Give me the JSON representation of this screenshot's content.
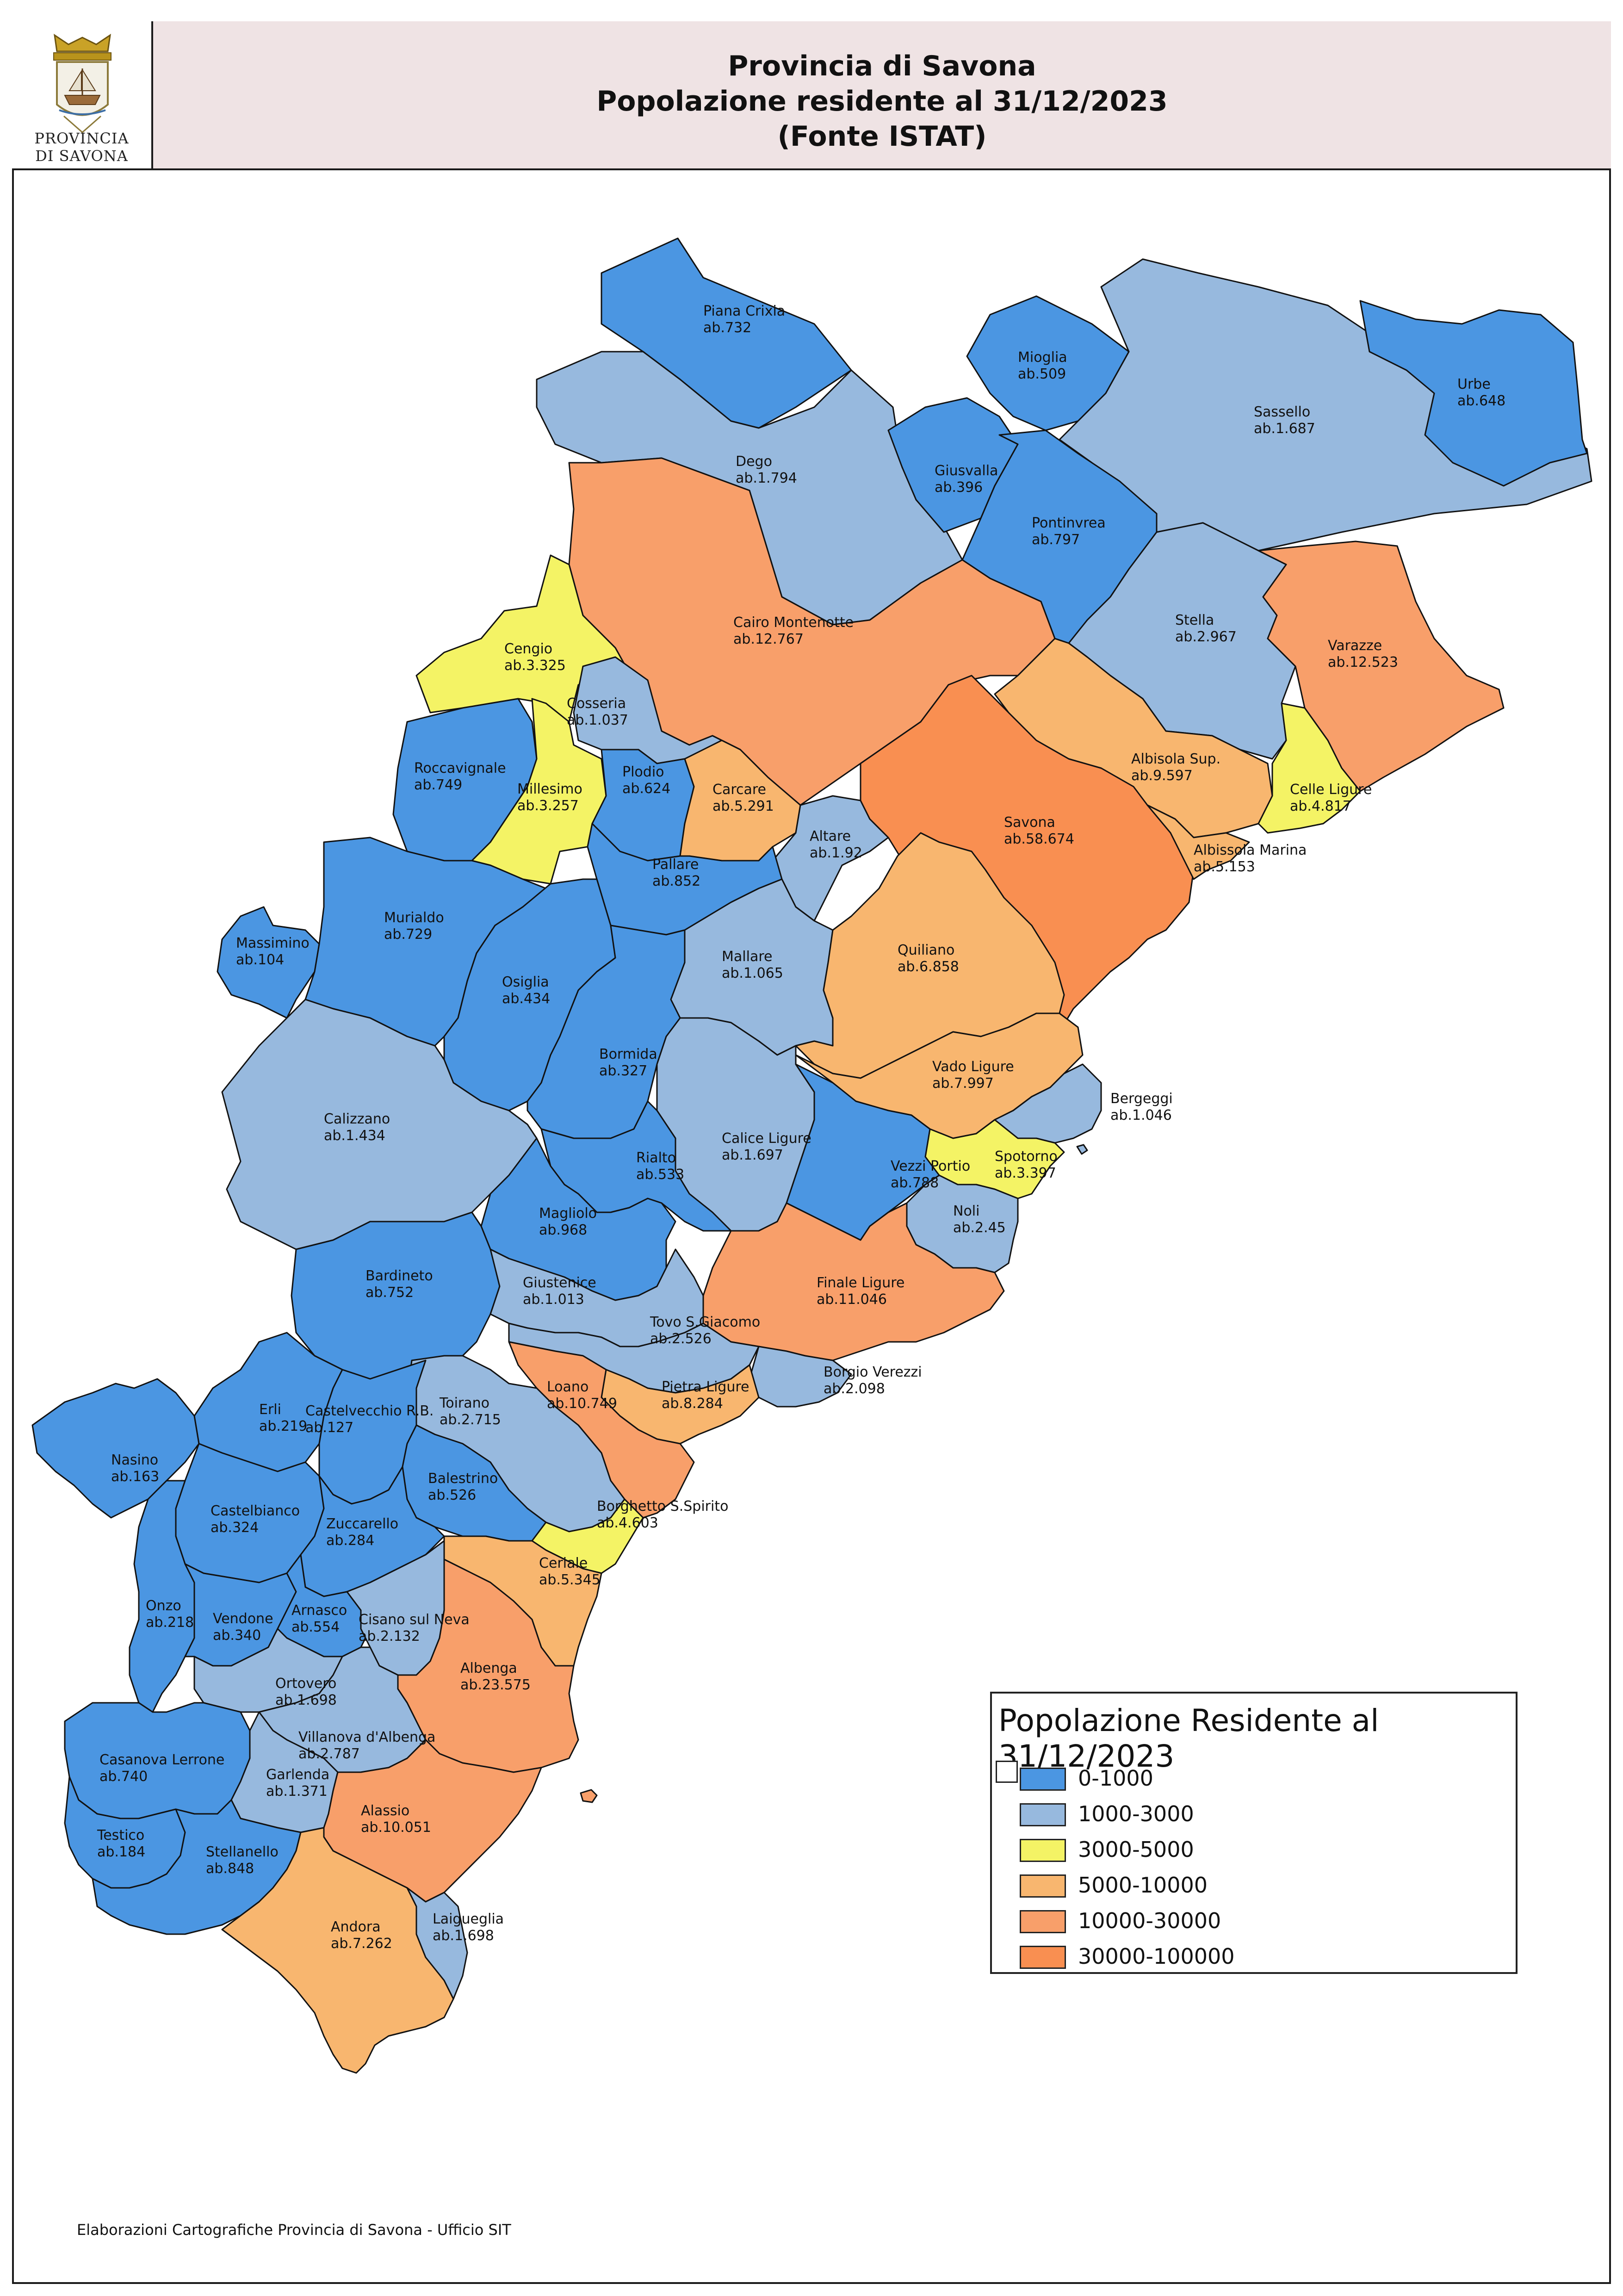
{
  "header": {
    "line1": "Provincia di Savona",
    "line2": "Popolazione residente al 31/12/2023",
    "line3": "(Fonte ISTAT)"
  },
  "logo": {
    "caption_line1": "PROVINCIA",
    "caption_line2": "DI SAVONA"
  },
  "legend": {
    "title": "Popolazione Residente al 31/12/2023",
    "classes": [
      {
        "label": "0-1000",
        "color": "#4b96e2"
      },
      {
        "label": "1000-3000",
        "color": "#97b9de"
      },
      {
        "label": "3000-5000",
        "color": "#f4f365"
      },
      {
        "label": "5000-10000",
        "color": "#f8b66f"
      },
      {
        "label": "10000-30000",
        "color": "#f89f6a"
      },
      {
        "label": "30000-100000",
        "color": "#f98f51"
      }
    ]
  },
  "footer": {
    "credit": "Elaborazioni Cartografiche Provincia di Savona - Ufficio SIT"
  },
  "municipalities": [
    {
      "name": "Piana Crixia",
      "pop": "ab.732"
    },
    {
      "name": "Mioglia",
      "pop": "ab.509"
    },
    {
      "name": "Urbe",
      "pop": "ab.648"
    },
    {
      "name": "Sassello",
      "pop": "ab.1.687"
    },
    {
      "name": "Dego",
      "pop": "ab.1.794"
    },
    {
      "name": "Giusvalla",
      "pop": "ab.396"
    },
    {
      "name": "Pontinvrea",
      "pop": "ab.797"
    },
    {
      "name": "Cairo Montenotte",
      "pop": "ab.12.767"
    },
    {
      "name": "Stella",
      "pop": "ab.2.967"
    },
    {
      "name": "Varazze",
      "pop": "ab.12.523"
    },
    {
      "name": "Cengio",
      "pop": "ab.3.325"
    },
    {
      "name": "Cosseria",
      "pop": "ab.1.037"
    },
    {
      "name": "Roccavignale",
      "pop": "ab.749"
    },
    {
      "name": "Millesimo",
      "pop": "ab.3.257"
    },
    {
      "name": "Plodio",
      "pop": "ab.624"
    },
    {
      "name": "Carcare",
      "pop": "ab.5.291"
    },
    {
      "name": "Albisola Sup.",
      "pop": "ab.9.597"
    },
    {
      "name": "Celle Ligure",
      "pop": "ab.4.817"
    },
    {
      "name": "Savona",
      "pop": "ab.58.674"
    },
    {
      "name": "Altare",
      "pop": "ab.1.92"
    },
    {
      "name": "Albissola Marina",
      "pop": "ab.5.153"
    },
    {
      "name": "Pallare",
      "pop": "ab.852"
    },
    {
      "name": "Massimino",
      "pop": "ab.104"
    },
    {
      "name": "Murialdo",
      "pop": "ab.729"
    },
    {
      "name": "Quiliano",
      "pop": "ab.6.858"
    },
    {
      "name": "Osiglia",
      "pop": "ab.434"
    },
    {
      "name": "Mallare",
      "pop": "ab.1.065"
    },
    {
      "name": "Bormida",
      "pop": "ab.327"
    },
    {
      "name": "Vado Ligure",
      "pop": "ab.7.997"
    },
    {
      "name": "Calizzano",
      "pop": "ab.1.434"
    },
    {
      "name": "Bergeggi",
      "pop": "ab.1.046"
    },
    {
      "name": "Calice Ligure",
      "pop": "ab.1.697"
    },
    {
      "name": "Rialto",
      "pop": "ab.533"
    },
    {
      "name": "Spotorno",
      "pop": "ab.3.397"
    },
    {
      "name": "Vezzi Portio",
      "pop": "ab.788"
    },
    {
      "name": "Magliolo",
      "pop": "ab.968"
    },
    {
      "name": "Noli",
      "pop": "ab.2.45"
    },
    {
      "name": "Bardineto",
      "pop": "ab.752"
    },
    {
      "name": "Giustenice",
      "pop": "ab.1.013"
    },
    {
      "name": "Finale Ligure",
      "pop": "ab.11.046"
    },
    {
      "name": "Tovo S.Giacomo",
      "pop": "ab.2.526"
    },
    {
      "name": "Borgio Verezzi",
      "pop": "ab.2.098"
    },
    {
      "name": "Erli",
      "pop": "ab.219"
    },
    {
      "name": "Castelvecchio R.B.",
      "pop": "ab.127"
    },
    {
      "name": "Toirano",
      "pop": "ab.2.715"
    },
    {
      "name": "Loano",
      "pop": "ab.10.749"
    },
    {
      "name": "Pietra Ligure",
      "pop": "ab.8.284"
    },
    {
      "name": "Nasino",
      "pop": "ab.163"
    },
    {
      "name": "Balestrino",
      "pop": "ab.526"
    },
    {
      "name": "Castelbianco",
      "pop": "ab.324"
    },
    {
      "name": "Zuccarello",
      "pop": "ab.284"
    },
    {
      "name": "Borghetto S.Spirito",
      "pop": "ab.4.603"
    },
    {
      "name": "Ceriale",
      "pop": "ab.5.345"
    },
    {
      "name": "Onzo",
      "pop": "ab.218"
    },
    {
      "name": "Vendone",
      "pop": "ab.340"
    },
    {
      "name": "Arnasco",
      "pop": "ab.554"
    },
    {
      "name": "Cisano sul Neva",
      "pop": "ab.2.132"
    },
    {
      "name": "Albenga",
      "pop": "ab.23.575"
    },
    {
      "name": "Ortovero",
      "pop": "ab.1.698"
    },
    {
      "name": "Villanova d'Albenga",
      "pop": "ab.2.787"
    },
    {
      "name": "Casanova Lerrone",
      "pop": "ab.740"
    },
    {
      "name": "Garlenda",
      "pop": "ab.1.371"
    },
    {
      "name": "Alassio",
      "pop": "ab.10.051"
    },
    {
      "name": "Testico",
      "pop": "ab.184"
    },
    {
      "name": "Stellanello",
      "pop": "ab.848"
    },
    {
      "name": "Andora",
      "pop": "ab.7.262"
    },
    {
      "name": "Laigueglia",
      "pop": "ab.1.698"
    }
  ]
}
